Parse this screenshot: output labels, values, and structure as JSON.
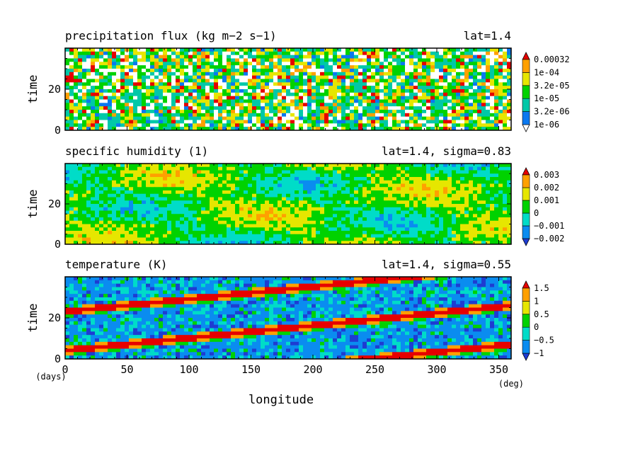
{
  "chart_data": [
    {
      "type": "heatmap",
      "title": "precipitation flux (kg m−2 s−1)",
      "annotation": "lat=1.4",
      "ylabel": "time",
      "ylim": [
        0,
        40
      ],
      "yticks": [
        "0",
        "20"
      ],
      "xlim": [
        0,
        360
      ],
      "colorbar": {
        "labels": [
          "1e-06",
          "3.2e-06",
          "1e-05",
          "3.2e-05",
          "1e-04",
          "0.00032"
        ],
        "colors": [
          "#0a78f0",
          "#00c8a8",
          "#00d200",
          "#e6e600",
          "#ffa000",
          "#e60000"
        ],
        "below_min": "white"
      },
      "pattern": "noisy"
    },
    {
      "type": "heatmap",
      "title": "specific humidity (1)",
      "annotation": "lat=1.4, sigma=0.83",
      "ylabel": "time",
      "ylim": [
        0,
        40
      ],
      "yticks": [
        "0",
        "20"
      ],
      "xlim": [
        0,
        360
      ],
      "colorbar": {
        "labels": [
          "−0.002",
          "−0.001",
          "0",
          "0.001",
          "0.002",
          "0.003"
        ],
        "colors": [
          "#1e3cd2",
          "#0a8cf0",
          "#00dcc8",
          "#00d200",
          "#e6e600",
          "#ffa000",
          "#e60000"
        ]
      },
      "pattern": "smooth"
    },
    {
      "type": "heatmap",
      "title": "temperature (K)",
      "annotation": "lat=1.4, sigma=0.55",
      "ylabel": "time",
      "ylim": [
        0,
        40
      ],
      "yticks": [
        "0",
        "20"
      ],
      "xlim": [
        0,
        360
      ],
      "colorbar": {
        "labels": [
          "−1",
          "−0.5",
          "0",
          "0.5",
          "1",
          "1.5"
        ],
        "colors": [
          "#1e3cd2",
          "#0a8cf0",
          "#00dcc8",
          "#00d200",
          "#e6e600",
          "#ffa000",
          "#e60000"
        ]
      },
      "pattern": "waves",
      "xticks": [
        "0",
        "50",
        "100",
        "150",
        "200",
        "250",
        "300",
        "350"
      ],
      "xlabel": "longitude",
      "xunit": "(deg)",
      "yunit": "(days)"
    }
  ]
}
